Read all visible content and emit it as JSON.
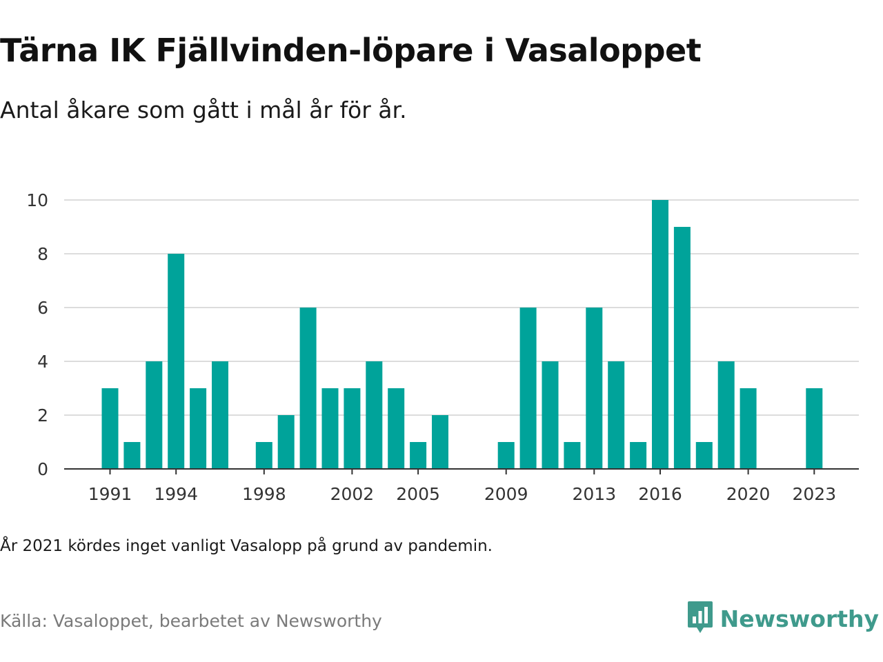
{
  "title": "Tärna IK Fjällvinden-löpare i Vasaloppet",
  "subtitle": "Antal åkare som gått i mål år för år.",
  "note": "År 2021 kördes inget vanligt Vasalopp på grund av pandemin.",
  "source": "Källa: Vasaloppet, bearbetet av Newsworthy",
  "brand": {
    "name": "Newsworthy",
    "icon": "newsworthy-logo-icon",
    "color": "#3f9a8c"
  },
  "colors": {
    "bar": "#00a39a",
    "grid": "#dcdcdc",
    "axis": "#333333"
  },
  "chart_data": {
    "type": "bar",
    "title": "Tärna IK Fjällvinden-löpare i Vasaloppet",
    "xlabel": "",
    "ylabel": "",
    "x": [
      1991,
      1992,
      1993,
      1994,
      1995,
      1996,
      1997,
      1998,
      1999,
      2000,
      2001,
      2002,
      2003,
      2004,
      2005,
      2006,
      2007,
      2008,
      2009,
      2010,
      2011,
      2012,
      2013,
      2014,
      2015,
      2016,
      2017,
      2018,
      2019,
      2020,
      2021,
      2022,
      2023
    ],
    "values": [
      3,
      1,
      4,
      8,
      3,
      4,
      0,
      1,
      2,
      6,
      3,
      3,
      4,
      3,
      1,
      2,
      0,
      0,
      1,
      6,
      4,
      1,
      6,
      4,
      1,
      10,
      9,
      1,
      4,
      3,
      0,
      0,
      3
    ],
    "ylim": [
      0,
      10
    ],
    "yticks": [
      0,
      2,
      4,
      6,
      8,
      10
    ],
    "xticks": [
      1991,
      1994,
      1998,
      2002,
      2005,
      2009,
      2013,
      2016,
      2020,
      2023
    ],
    "grid": true,
    "legend": "none"
  }
}
